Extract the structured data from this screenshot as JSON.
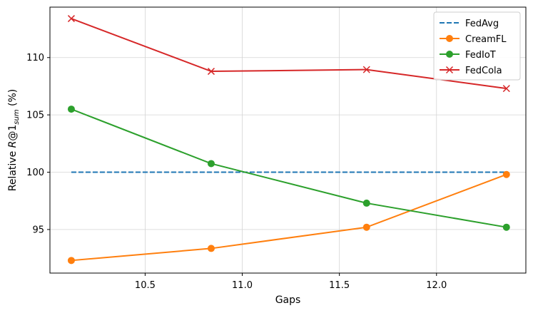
{
  "chart_data": {
    "type": "line",
    "xlabel": "Gaps",
    "ylabel_prefix": "Relative ",
    "ylabel_italic": "R",
    "ylabel_at": "@1",
    "ylabel_sub": "sum",
    "ylabel_suffix": " (%)",
    "xlim": [
      10.01,
      12.46
    ],
    "ylim": [
      91.2,
      114.4
    ],
    "xticks": [
      10.5,
      11.0,
      11.5,
      12.0
    ],
    "xtick_labels": [
      "10.5",
      "11.0",
      "11.5",
      "12.0"
    ],
    "yticks": [
      95,
      100,
      105,
      110
    ],
    "ytick_labels": [
      "95",
      "100",
      "105",
      "110"
    ],
    "grid": true,
    "legend_position": "top-right",
    "series": [
      {
        "name": "FedAvg",
        "color": "#1f77b4",
        "style": "dashed",
        "marker": "none",
        "x": [
          10.12,
          10.84,
          11.64,
          12.36
        ],
        "y": [
          100.0,
          100.0,
          100.0,
          100.0
        ]
      },
      {
        "name": "CreamFL",
        "color": "#ff7f0e",
        "style": "solid",
        "marker": "circle",
        "x": [
          10.12,
          10.84,
          11.64,
          12.36
        ],
        "y": [
          92.3,
          93.35,
          95.2,
          99.8
        ]
      },
      {
        "name": "FedIoT",
        "color": "#2ca02c",
        "style": "solid",
        "marker": "circle",
        "x": [
          10.12,
          10.84,
          11.64,
          12.36
        ],
        "y": [
          105.5,
          100.75,
          97.3,
          95.2
        ]
      },
      {
        "name": "FedCola",
        "color": "#d62728",
        "style": "solid",
        "marker": "x",
        "x": [
          10.12,
          10.84,
          11.64,
          12.36
        ],
        "y": [
          113.4,
          108.8,
          108.95,
          107.3
        ]
      }
    ]
  }
}
